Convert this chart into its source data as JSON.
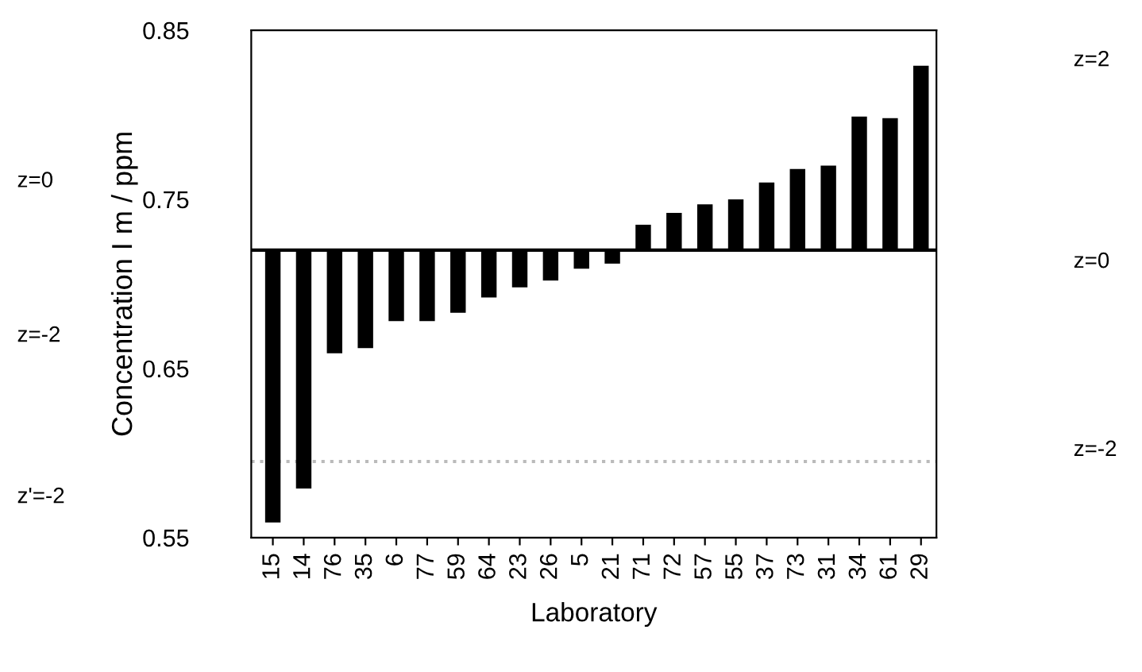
{
  "chart_data": {
    "type": "bar",
    "xlabel": "Laboratory",
    "ylabel": "Concentration I m / ppm",
    "categories": [
      "15",
      "14",
      "76",
      "35",
      "6",
      "77",
      "59",
      "64",
      "23",
      "26",
      "5",
      "21",
      "71",
      "72",
      "57",
      "55",
      "37",
      "73",
      "31",
      "34",
      "61",
      "29"
    ],
    "base": [
      0.72,
      0.72,
      0.72,
      0.72,
      0.72,
      0.72,
      0.72,
      0.72,
      0.72,
      0.72,
      0.72,
      0.72,
      0.72,
      0.72,
      0.72,
      0.72,
      0.72,
      0.72,
      0.72,
      0.72,
      0.72,
      0.72
    ],
    "values": [
      -0.161,
      -0.141,
      -0.061,
      -0.058,
      -0.042,
      -0.042,
      -0.037,
      -0.028,
      -0.022,
      -0.018,
      -0.011,
      -0.008,
      0.015,
      0.022,
      0.027,
      0.03,
      0.04,
      0.048,
      0.05,
      0.079,
      0.078,
      0.109
    ],
    "color": "#000000",
    "ylim": [
      0.55,
      0.85
    ],
    "yticks": [
      0.55,
      0.65,
      0.75,
      0.85
    ],
    "annotations": [
      "z=0",
      "z=-2",
      "z'=-2",
      "z=2",
      "z=0",
      "z=-2"
    ],
    "ref_lines": [
      {
        "axis": "y",
        "value": 0.72,
        "color": "#000000",
        "line_style": "solid"
      },
      {
        "axis": "y",
        "value": 0.595,
        "color": "#bbbbbb",
        "line_style": "dotted"
      }
    ],
    "grid": false,
    "legend": false
  }
}
